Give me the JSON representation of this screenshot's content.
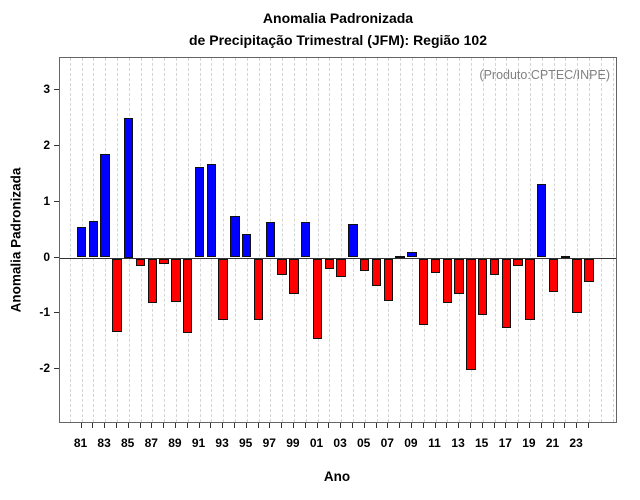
{
  "title": {
    "line1": "Anomalia Padronizada",
    "line2": "de Precipitação Trimestral (JFM): Região 102"
  },
  "annotation": "(Produto:CPTEC/INPE)",
  "axes": {
    "ylabel": "Anomalia Padronizada",
    "xlabel": "Ano",
    "ytick_labels": [
      "3",
      "2",
      "1",
      "0",
      "-1",
      "-2"
    ],
    "ytick_values": [
      3,
      2,
      1,
      0,
      -1,
      -2
    ],
    "xtick_labels_shown": [
      "81",
      "83",
      "85",
      "87",
      "89",
      "91",
      "93",
      "95",
      "97",
      "99",
      "01",
      "03",
      "05",
      "07",
      "09",
      "11",
      "13",
      "15",
      "17",
      "19",
      "21",
      "23"
    ]
  },
  "colors": {
    "positive_bar": "#0000FF",
    "negative_bar": "#FF0000",
    "bar_border": "#111111",
    "grid": "#d4d4d4",
    "axis_box": "#666666",
    "zero_line": "#333333",
    "annotation_text": "#808080"
  },
  "chart_data": {
    "type": "bar",
    "title": "Anomalia Padronizada de Precipitação Trimestral (JFM): Região 102",
    "xlabel": "Ano",
    "ylabel": "Anomalia Padronizada",
    "ylim": [
      -3.0,
      3.6
    ],
    "grid": "vertical-dashed",
    "legend": "none",
    "annotation": "(Produto:CPTEC/INPE)",
    "categories": [
      "81",
      "82",
      "83",
      "84",
      "85",
      "86",
      "87",
      "88",
      "89",
      "90",
      "91",
      "92",
      "93",
      "94",
      "95",
      "96",
      "97",
      "98",
      "99",
      "00",
      "01",
      "02",
      "03",
      "04",
      "05",
      "06",
      "07",
      "08",
      "09",
      "10",
      "11",
      "12",
      "13",
      "14",
      "15",
      "16",
      "17",
      "18",
      "19",
      "20",
      "21",
      "22",
      "23",
      "24"
    ],
    "values": [
      0.55,
      0.65,
      1.85,
      -1.32,
      2.5,
      -0.13,
      -0.8,
      -0.09,
      -0.78,
      -1.33,
      1.63,
      1.68,
      -1.1,
      0.74,
      0.42,
      -1.1,
      0.63,
      -0.3,
      -0.64,
      0.64,
      -1.44,
      -0.18,
      -0.33,
      0.6,
      -0.23,
      -0.5,
      -0.77,
      0.02,
      0.1,
      -1.2,
      -0.26,
      -0.8,
      -0.63,
      -2.0,
      -1.02,
      -0.3,
      -1.25,
      -0.14,
      -1.1,
      1.32,
      -0.6,
      0.03,
      -0.98,
      -0.42
    ],
    "series_coloring": "positive blue, negative red"
  }
}
